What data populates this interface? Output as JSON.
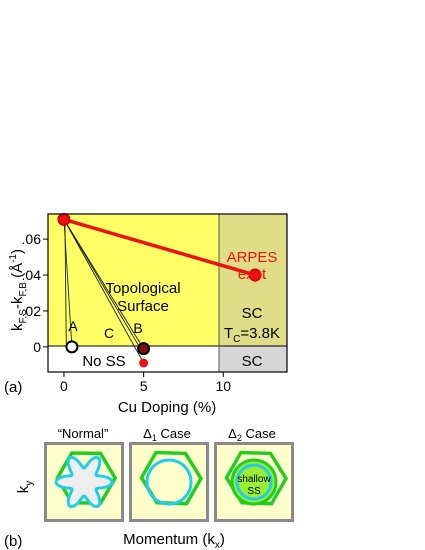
{
  "chart_data": {
    "type": "scatter",
    "panel_label": "(a)",
    "xlabel": "Cu Doping (%)",
    "ylabel_main": "k",
    "ylabel_sub1": "F,S",
    "ylabel_mid": "-k",
    "ylabel_sub2": "F,B",
    "ylabel_unit": " (Å",
    "ylabel_exp": "-1",
    "ylabel_close": ")",
    "xlim": [
      -1,
      14
    ],
    "ylim": [
      -0.014,
      0.074
    ],
    "x_ticks": [
      {
        "v": 0,
        "label": "0"
      },
      {
        "v": 5,
        "label": "5"
      },
      {
        "v": 10,
        "label": "10"
      }
    ],
    "y_ticks": [
      {
        "v": 0,
        "label": "0"
      },
      {
        "v": 0.02,
        "label": ".02"
      },
      {
        "v": 0.04,
        "label": ".04"
      },
      {
        "v": 0.06,
        "label": ".06"
      }
    ],
    "series": [
      {
        "name": "ARPES expt",
        "color": "#ee1111",
        "x": [
          0,
          12
        ],
        "y": [
          0.071,
          0.04
        ]
      }
    ],
    "points": [
      {
        "id": "origin",
        "x": 0,
        "y": 0.071,
        "fill": "#ee1111",
        "stroke": "#cc0000"
      },
      {
        "id": "arpes12",
        "x": 12,
        "y": 0.04,
        "fill": "#ee1111",
        "stroke": "#cc0000"
      },
      {
        "id": "A",
        "x": 0.5,
        "y": 0,
        "fill": "#ffffff",
        "stroke": "#000000"
      },
      {
        "id": "B",
        "x": 5,
        "y": -0.001,
        "fill": "#7a1010",
        "stroke": "#000000"
      },
      {
        "id": "below",
        "x": 5,
        "y": -0.009,
        "fill": "#ee1111",
        "stroke": "#ee1111"
      }
    ],
    "regions": {
      "topological": "Topological",
      "surface": "Surface",
      "no_ss": "No SS",
      "sc_top": "SC",
      "tc": "T",
      "tc_sub": "C",
      "tc_val": "=3.8K",
      "sc_bottom": "SC",
      "arpes_line1": "ARPES",
      "arpes_line2": "expt"
    },
    "point_labels": {
      "A": "A",
      "B": "B",
      "C": "C"
    },
    "colors": {
      "yellow": "#ffff66",
      "olive": "#e0dd88",
      "gray": "#d6d6d6",
      "red": "#ee1111"
    }
  },
  "panel_b": {
    "label": "(b)",
    "ylabel": "k",
    "ylabel_sub": "y",
    "xlabel": "Momentum (k",
    "xlabel_sub": "x",
    "xlabel_close": ")",
    "titles": {
      "normal": "“Normal”",
      "d1_sym": "Δ",
      "d1_sub": "1",
      "d1_rest": " Case",
      "d2_sym": "Δ",
      "d2_sub": "2",
      "d2_rest": " Case"
    },
    "shallow_line1": "shallow",
    "shallow_line2": "SS",
    "colors": {
      "frame": "#8a8a8a",
      "bg": "#ffffcc",
      "green": "#22cc22",
      "cyan": "#22ccee",
      "lime": "#99ee33"
    }
  }
}
